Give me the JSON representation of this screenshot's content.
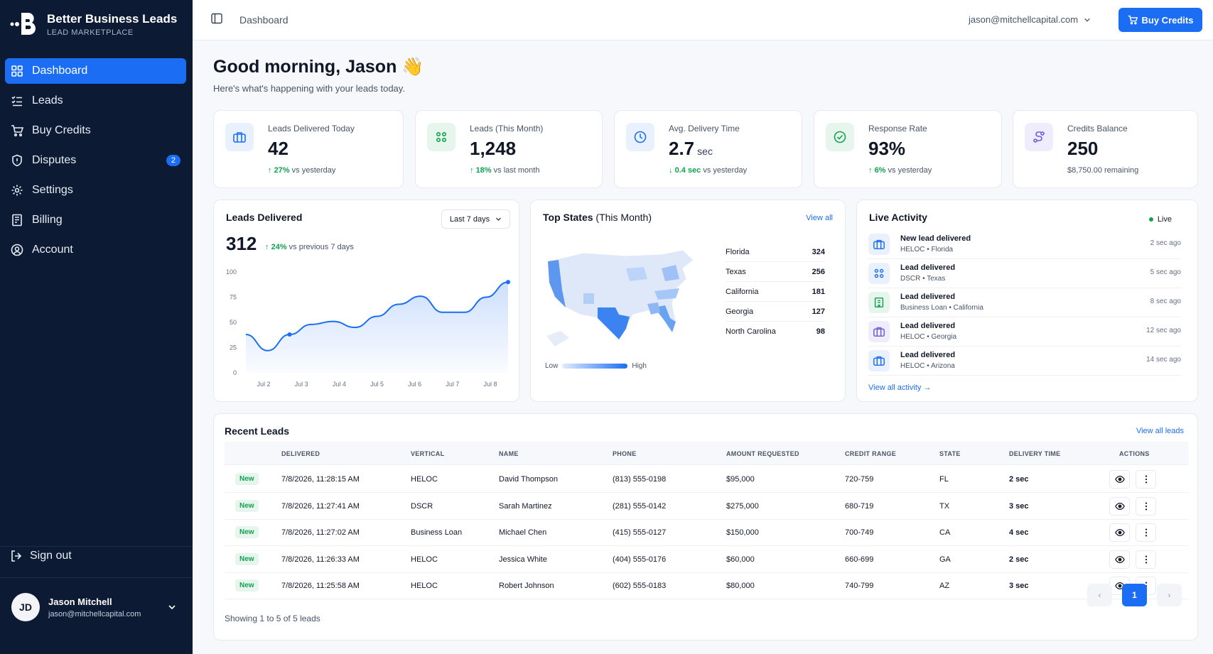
{
  "brand": {
    "name": "Better Business Leads",
    "sub": "LEAD MARKETPLACE",
    "accent": "#1b6ef3"
  },
  "sidebar": {
    "items": [
      {
        "label": "Dashboard",
        "icon": "grid-icon"
      },
      {
        "label": "Leads",
        "icon": "list-check-icon"
      },
      {
        "label": "Buy Credits",
        "icon": "cart-icon"
      },
      {
        "label": "Disputes",
        "icon": "shield-icon",
        "badge": "2"
      },
      {
        "label": "Settings",
        "icon": "gear-icon"
      },
      {
        "label": "Billing",
        "icon": "receipt-icon"
      },
      {
        "label": "Account",
        "icon": "user-circle-icon"
      }
    ],
    "signout": "Sign out",
    "user": {
      "initials": "JD",
      "name": "Jason Mitchell",
      "email": "jason@mitchellcapital.com"
    }
  },
  "topbar": {
    "breadcrumb": "Dashboard",
    "account": "jason@mitchellcapital.com",
    "buy_label": "Buy Credits"
  },
  "greeting": {
    "title": "Good morning, Jason 👋",
    "subtitle": "Here's what's happening with your leads today."
  },
  "stats": [
    {
      "label": "Leads Delivered Today",
      "value": "42",
      "unit": "",
      "delta": "27%",
      "delta_dir": "up",
      "delta_text": "vs yesterday",
      "icon": "briefcase-icon"
    },
    {
      "label": "Leads (This Month)",
      "value": "1,248",
      "unit": "",
      "delta": "18%",
      "delta_dir": "up",
      "delta_text": "vs last month",
      "icon": "nodes-icon"
    },
    {
      "label": "Avg. Delivery Time",
      "value": "2.7",
      "unit": "sec",
      "delta": "0.4 sec",
      "delta_dir": "down",
      "delta_text": "vs yesterday",
      "icon": "clock-icon"
    },
    {
      "label": "Response Rate",
      "value": "93%",
      "unit": "",
      "delta": "6%",
      "delta_dir": "up",
      "delta_text": "vs yesterday",
      "icon": "check-circle-icon"
    },
    {
      "label": "Credits Balance",
      "value": "250",
      "unit": "",
      "delta": "",
      "delta_dir": "",
      "delta_text": "$8,750.00 remaining",
      "icon": "route-icon"
    }
  ],
  "leads_chart": {
    "title": "Leads Delivered",
    "range": "Last 7 days",
    "total": "312",
    "delta": "24%",
    "delta_text": "vs previous 7 days"
  },
  "chart_data": {
    "type": "line",
    "title": "Leads Delivered",
    "x": [
      "Jul 2",
      "Jul 2.5",
      "Jul 3",
      "Jul 3.5",
      "Jul 4",
      "Jul 4.5",
      "Jul 5",
      "Jul 5.5",
      "Jul 6",
      "Jul 6.5",
      "Jul 7",
      "Jul 7.5",
      "Jul 8"
    ],
    "xticks": [
      "Jul 2",
      "Jul 3",
      "Jul 4",
      "Jul 5",
      "Jul 6",
      "Jul 7",
      "Jul 8"
    ],
    "values": [
      38,
      22,
      38,
      48,
      51,
      45,
      56,
      68,
      76,
      60,
      60,
      75,
      90
    ],
    "ylim": [
      0,
      100
    ],
    "yticks": [
      0,
      25,
      50,
      75,
      100
    ],
    "grid": false
  },
  "top_states": {
    "title": "Top States",
    "suffix": "(This Month)",
    "view_all": "View all",
    "legend_low": "Low",
    "legend_high": "High",
    "rows": [
      {
        "state": "Florida",
        "value": "324"
      },
      {
        "state": "Texas",
        "value": "256"
      },
      {
        "state": "California",
        "value": "181"
      },
      {
        "state": "Georgia",
        "value": "127"
      },
      {
        "state": "North Carolina",
        "value": "98"
      }
    ]
  },
  "live": {
    "title": "Live Activity",
    "badge": "Live",
    "view_all": "View all activity",
    "rows": [
      {
        "title": "New lead delivered",
        "sub": "HELOC • Florida",
        "time": "2 sec ago",
        "icon": "briefcase-icon",
        "color": "#1b6ef3"
      },
      {
        "title": "Lead delivered",
        "sub": "DSCR • Texas",
        "time": "5 sec ago",
        "icon": "nodes-icon",
        "color": "#1b6ef3"
      },
      {
        "title": "Lead delivered",
        "sub": "Business Loan • California",
        "time": "8 sec ago",
        "icon": "building-icon",
        "color": "#12a150"
      },
      {
        "title": "Lead delivered",
        "sub": "HELOC • Georgia",
        "time": "12 sec ago",
        "icon": "briefcase-icon",
        "color": "#6b5bd6"
      },
      {
        "title": "Lead delivered",
        "sub": "HELOC • Arizona",
        "time": "14 sec ago",
        "icon": "briefcase-icon",
        "color": "#1b6ef3"
      }
    ]
  },
  "recent": {
    "title": "Recent Leads",
    "view_all": "View all leads",
    "showing": "Showing 1 to 5 of 5 leads",
    "page": "1",
    "columns": [
      "DELIVERED",
      "VERTICAL",
      "NAME",
      "PHONE",
      "AMOUNT REQUESTED",
      "CREDIT RANGE",
      "STATE",
      "DELIVERY TIME",
      "ACTIONS"
    ],
    "rows": [
      {
        "status": "New",
        "delivered": "7/8/2026, 11:28:15 AM",
        "vertical": "HELOC",
        "name": "David Thompson",
        "phone": "(813) 555-0198",
        "amount": "$95,000",
        "credit": "720-759",
        "state": "FL",
        "time": "2 sec"
      },
      {
        "status": "New",
        "delivered": "7/8/2026, 11:27:41 AM",
        "vertical": "DSCR",
        "name": "Sarah Martinez",
        "phone": "(281) 555-0142",
        "amount": "$275,000",
        "credit": "680-719",
        "state": "TX",
        "time": "3 sec"
      },
      {
        "status": "New",
        "delivered": "7/8/2026, 11:27:02 AM",
        "vertical": "Business Loan",
        "name": "Michael Chen",
        "phone": "(415) 555-0127",
        "amount": "$150,000",
        "credit": "700-749",
        "state": "CA",
        "time": "4 sec"
      },
      {
        "status": "New",
        "delivered": "7/8/2026, 11:26:33 AM",
        "vertical": "HELOC",
        "name": "Jessica White",
        "phone": "(404) 555-0176",
        "amount": "$60,000",
        "credit": "660-699",
        "state": "GA",
        "time": "2 sec"
      },
      {
        "status": "New",
        "delivered": "7/8/2026, 11:25:58 AM",
        "vertical": "HELOC",
        "name": "Robert Johnson",
        "phone": "(602) 555-0183",
        "amount": "$80,000",
        "credit": "740-799",
        "state": "AZ",
        "time": "3 sec"
      }
    ]
  }
}
